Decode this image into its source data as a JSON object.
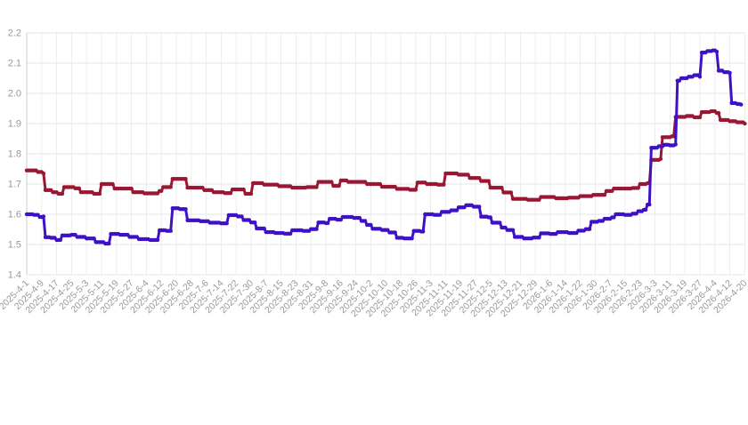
{
  "page": {
    "background": "#ffffff"
  },
  "chart_data": {
    "type": "line",
    "title": "",
    "legend_visible": false,
    "grid": true,
    "x_axis": {
      "start_date": "2025-4-1",
      "end_date": "2026-4-20",
      "tick_interval_days": 8,
      "label_rotation_deg": 45,
      "labels": [
        "2025-4-1",
        "2025-4-9",
        "2025-4-17",
        "2025-4-25",
        "2025-5-3",
        "2025-5-11",
        "2025-5-19",
        "2025-5-27",
        "2025-6-4",
        "2025-6-12",
        "2025-6-20",
        "2025-6-28",
        "2025-7-6",
        "2025-7-14",
        "2025-7-22",
        "2025-7-30",
        "2025-8-7",
        "2025-8-15",
        "2025-8-23",
        "2025-8-31",
        "2025-9-8",
        "2025-9-16",
        "2025-9-24",
        "2025-10-2",
        "2025-10-10",
        "2025-10-18",
        "2025-10-26",
        "2025-11-3",
        "2025-11-11",
        "2025-11-19",
        "2025-11-27",
        "2025-12-5",
        "2025-12-13",
        "2025-12-21",
        "2025-12-29",
        "2026-1-6",
        "2026-1-14",
        "2026-1-22",
        "2026-1-30",
        "2026-2-7",
        "2026-2-15",
        "2026-2-23",
        "2026-3-3",
        "2026-3-11",
        "2026-3-19",
        "2026-3-27",
        "2026-4-4",
        "2026-4-12",
        "2026-4-20"
      ]
    },
    "y_axis": {
      "min": 1.4,
      "max": 2.2,
      "tick_step": 0.1,
      "labels": [
        "1.4",
        "1.5",
        "1.6",
        "1.7",
        "1.8",
        "1.9",
        "2.0",
        "2.1",
        "2.2"
      ]
    },
    "interpolation": "step-hold-daily; anchors are [day_offset_from_2025-4-1, value]",
    "series": [
      {
        "name": "red-series",
        "color": "#9a1733",
        "anchors": [
          [
            0,
            1.745
          ],
          [
            6,
            1.74
          ],
          [
            9,
            1.735
          ],
          [
            10,
            1.68
          ],
          [
            14,
            1.673
          ],
          [
            17,
            1.668
          ],
          [
            20,
            1.69
          ],
          [
            26,
            1.686
          ],
          [
            29,
            1.673
          ],
          [
            36,
            1.668
          ],
          [
            40,
            1.7
          ],
          [
            47,
            1.685
          ],
          [
            57,
            1.673
          ],
          [
            63,
            1.669
          ],
          [
            71,
            1.677
          ],
          [
            73,
            1.69
          ],
          [
            78,
            1.717
          ],
          [
            86,
            1.688
          ],
          [
            95,
            1.68
          ],
          [
            100,
            1.673
          ],
          [
            106,
            1.67
          ],
          [
            110,
            1.682
          ],
          [
            117,
            1.668
          ],
          [
            121,
            1.703
          ],
          [
            127,
            1.698
          ],
          [
            135,
            1.693
          ],
          [
            142,
            1.688
          ],
          [
            150,
            1.69
          ],
          [
            156,
            1.707
          ],
          [
            164,
            1.694
          ],
          [
            168,
            1.712
          ],
          [
            172,
            1.707
          ],
          [
            182,
            1.7
          ],
          [
            190,
            1.691
          ],
          [
            198,
            1.684
          ],
          [
            205,
            1.681
          ],
          [
            209,
            1.705
          ],
          [
            214,
            1.7
          ],
          [
            220,
            1.698
          ],
          [
            224,
            1.735
          ],
          [
            231,
            1.731
          ],
          [
            237,
            1.72
          ],
          [
            243,
            1.71
          ],
          [
            248,
            1.688
          ],
          [
            255,
            1.672
          ],
          [
            260,
            1.651
          ],
          [
            268,
            1.648
          ],
          [
            275,
            1.657
          ],
          [
            283,
            1.653
          ],
          [
            290,
            1.655
          ],
          [
            296,
            1.66
          ],
          [
            303,
            1.664
          ],
          [
            310,
            1.677
          ],
          [
            314,
            1.685
          ],
          [
            324,
            1.687
          ],
          [
            328,
            1.7
          ],
          [
            332,
            1.703
          ],
          [
            334,
            1.78
          ],
          [
            339,
            1.783
          ],
          [
            340,
            1.855
          ],
          [
            345,
            1.858
          ],
          [
            347,
            1.922
          ],
          [
            353,
            1.925
          ],
          [
            357,
            1.921
          ],
          [
            361,
            1.938
          ],
          [
            366,
            1.941
          ],
          [
            369,
            1.935
          ],
          [
            371,
            1.912
          ],
          [
            376,
            1.908
          ],
          [
            380,
            1.904
          ],
          [
            384,
            1.9
          ]
        ]
      },
      {
        "name": "blue-series",
        "color": "#3e11c6",
        "anchors": [
          [
            0,
            1.6
          ],
          [
            4,
            1.598
          ],
          [
            7,
            1.591
          ],
          [
            9,
            1.593
          ],
          [
            10,
            1.524
          ],
          [
            13,
            1.522
          ],
          [
            16,
            1.515
          ],
          [
            19,
            1.53
          ],
          [
            24,
            1.532
          ],
          [
            27,
            1.525
          ],
          [
            32,
            1.52
          ],
          [
            37,
            1.508
          ],
          [
            42,
            1.503
          ],
          [
            45,
            1.535
          ],
          [
            50,
            1.532
          ],
          [
            55,
            1.525
          ],
          [
            60,
            1.518
          ],
          [
            66,
            1.515
          ],
          [
            71,
            1.547
          ],
          [
            75,
            1.545
          ],
          [
            78,
            1.62
          ],
          [
            82,
            1.617
          ],
          [
            86,
            1.58
          ],
          [
            93,
            1.577
          ],
          [
            98,
            1.572
          ],
          [
            104,
            1.57
          ],
          [
            108,
            1.597
          ],
          [
            113,
            1.593
          ],
          [
            116,
            1.581
          ],
          [
            120,
            1.573
          ],
          [
            123,
            1.553
          ],
          [
            128,
            1.541
          ],
          [
            133,
            1.538
          ],
          [
            138,
            1.536
          ],
          [
            142,
            1.547
          ],
          [
            148,
            1.545
          ],
          [
            152,
            1.551
          ],
          [
            156,
            1.573
          ],
          [
            160,
            1.571
          ],
          [
            162,
            1.585
          ],
          [
            166,
            1.582
          ],
          [
            169,
            1.591
          ],
          [
            175,
            1.588
          ],
          [
            179,
            1.578
          ],
          [
            182,
            1.565
          ],
          [
            185,
            1.552
          ],
          [
            190,
            1.548
          ],
          [
            194,
            1.54
          ],
          [
            198,
            1.522
          ],
          [
            202,
            1.52
          ],
          [
            207,
            1.545
          ],
          [
            211,
            1.543
          ],
          [
            213,
            1.6
          ],
          [
            218,
            1.598
          ],
          [
            222,
            1.608
          ],
          [
            227,
            1.613
          ],
          [
            231,
            1.623
          ],
          [
            235,
            1.63
          ],
          [
            239,
            1.625
          ],
          [
            243,
            1.592
          ],
          [
            247,
            1.59
          ],
          [
            249,
            1.572
          ],
          [
            254,
            1.556
          ],
          [
            257,
            1.548
          ],
          [
            261,
            1.525
          ],
          [
            266,
            1.52
          ],
          [
            271,
            1.523
          ],
          [
            275,
            1.537
          ],
          [
            280,
            1.535
          ],
          [
            284,
            1.541
          ],
          [
            290,
            1.538
          ],
          [
            295,
            1.546
          ],
          [
            299,
            1.551
          ],
          [
            302,
            1.575
          ],
          [
            306,
            1.578
          ],
          [
            309,
            1.585
          ],
          [
            313,
            1.59
          ],
          [
            315,
            1.6
          ],
          [
            320,
            1.598
          ],
          [
            324,
            1.602
          ],
          [
            327,
            1.61
          ],
          [
            330,
            1.615
          ],
          [
            332,
            1.632
          ],
          [
            334,
            1.82
          ],
          [
            338,
            1.825
          ],
          [
            341,
            1.83
          ],
          [
            344,
            1.828
          ],
          [
            347,
            1.831
          ],
          [
            348,
            2.042
          ],
          [
            350,
            2.05
          ],
          [
            354,
            2.055
          ],
          [
            357,
            2.06
          ],
          [
            360,
            2.055
          ],
          [
            361,
            2.135
          ],
          [
            364,
            2.14
          ],
          [
            367,
            2.142
          ],
          [
            369,
            2.138
          ],
          [
            370,
            2.075
          ],
          [
            373,
            2.07
          ],
          [
            376,
            2.068
          ],
          [
            377,
            1.968
          ],
          [
            380,
            1.965
          ],
          [
            382,
            1.963
          ]
        ]
      }
    ],
    "colors": {
      "grid_horizontal": "#e6e6e6",
      "grid_vertical": "#ededed",
      "axis": "#cccccc",
      "label": "#999999"
    }
  }
}
